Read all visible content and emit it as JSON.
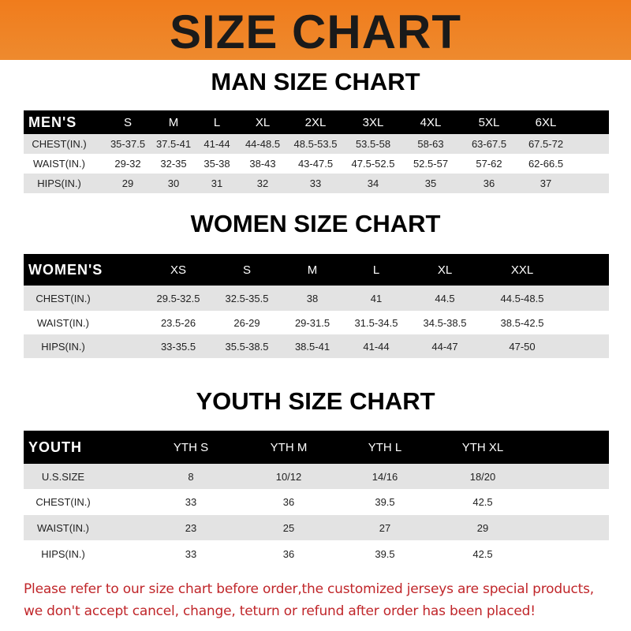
{
  "banner": {
    "title": "SIZE CHART",
    "color": "#f07c1c"
  },
  "tables": [
    {
      "title": "MAN SIZE CHART",
      "header": "MEN'S",
      "sizes": [
        "S",
        "M",
        "L",
        "XL",
        "2XL",
        "3XL",
        "4XL",
        "5XL",
        "6XL"
      ],
      "rows": [
        {
          "label": "CHEST(IN.)",
          "values": [
            "35-37.5",
            "37.5-41",
            "41-44",
            "44-48.5",
            "48.5-53.5",
            "53.5-58",
            "58-63",
            "63-67.5",
            "67.5-72"
          ]
        },
        {
          "label": "WAIST(IN.)",
          "values": [
            "29-32",
            "32-35",
            "35-38",
            "38-43",
            "43-47.5",
            "47.5-52.5",
            "52.5-57",
            "57-62",
            "62-66.5"
          ]
        },
        {
          "label": "HIPS(IN.)",
          "values": [
            "29",
            "30",
            "31",
            "32",
            "33",
            "34",
            "35",
            "36",
            "37"
          ]
        }
      ]
    },
    {
      "title": "WOMEN SIZE CHART",
      "header": "WOMEN'S",
      "sizes": [
        "XS",
        "S",
        "M",
        "L",
        "XL",
        "XXL"
      ],
      "rows": [
        {
          "label": "CHEST(IN.)",
          "values": [
            "29.5-32.5",
            "32.5-35.5",
            "38",
            "41",
            "44.5",
            "44.5-48.5"
          ]
        },
        {
          "label": "WAIST(IN.)",
          "values": [
            "23.5-26",
            "26-29",
            "29-31.5",
            "31.5-34.5",
            "34.5-38.5",
            "38.5-42.5"
          ]
        },
        {
          "label": "HIPS(IN.)",
          "values": [
            "33-35.5",
            "35.5-38.5",
            "38.5-41",
            "41-44",
            "44-47",
            "47-50"
          ]
        }
      ]
    },
    {
      "title": "YOUTH SIZE CHART",
      "header": "YOUTH",
      "sizes": [
        "YTH S",
        "YTH M",
        "YTH L",
        "YTH XL"
      ],
      "rows": [
        {
          "label": "U.S.SIZE",
          "values": [
            "8",
            "10/12",
            "14/16",
            "18/20"
          ]
        },
        {
          "label": "CHEST(IN.)",
          "values": [
            "33",
            "36",
            "39.5",
            "42.5"
          ]
        },
        {
          "label": "WAIST(IN.)",
          "values": [
            "23",
            "25",
            "27",
            "29"
          ]
        },
        {
          "label": "HIPS(IN.)",
          "values": [
            "33",
            "36",
            "39.5",
            "42.5"
          ]
        }
      ]
    }
  ],
  "footer": {
    "line1": "Please refer to our size chart before order,the customized jerseys are special products,",
    "line2": "we don't accept cancel, change, teturn or refund after order has been placed!",
    "color": "#c0262a"
  }
}
